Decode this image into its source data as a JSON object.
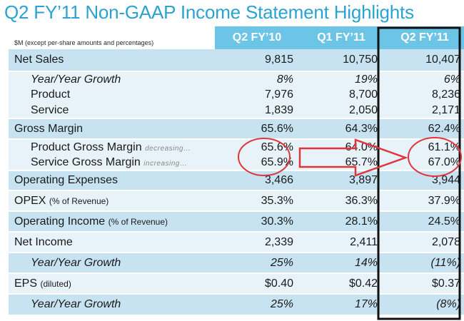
{
  "title": "Q2 FY’11 Non-GAAP Income Statement Highlights",
  "units_note": "$M (except per-share amounts and percentages)",
  "columns": [
    "Q2 FY’10",
    "Q1 FY’11",
    "Q2 FY’11"
  ],
  "rows": {
    "net_sales": {
      "label": "Net Sales",
      "values": [
        "9,815",
        "10,750",
        "10,407"
      ]
    },
    "ns_growth": {
      "label": "Year/Year Growth",
      "values": [
        "8%",
        "19%",
        "6%"
      ]
    },
    "product": {
      "label": "Product",
      "values": [
        "7,976",
        "8,700",
        "8,236"
      ]
    },
    "service": {
      "label": "Service",
      "values": [
        "1,839",
        "2,050",
        "2,171"
      ]
    },
    "gross_margin": {
      "label": "Gross Margin",
      "values": [
        "65.6%",
        "64.3%",
        "62.4%"
      ]
    },
    "product_gm": {
      "label": "Product Gross Margin",
      "hint": "decreasing…",
      "values": [
        "65.6%",
        "64.0%",
        "61.1%"
      ]
    },
    "service_gm": {
      "label": "Service Gross Margin",
      "hint": "increasing…",
      "values": [
        "65.9%",
        "65.7%",
        "67.0%"
      ]
    },
    "opex": {
      "label": "Operating Expenses",
      "values": [
        "3,466",
        "3,897",
        "3,944"
      ]
    },
    "opex_pct": {
      "label": "OPEX",
      "qualifier": "(% of Revenue)",
      "values": [
        "35.3%",
        "36.3%",
        "37.9%"
      ]
    },
    "op_income": {
      "label": "Operating Income",
      "qualifier": "(% of Revenue)",
      "values": [
        "30.3%",
        "28.1%",
        "24.5%"
      ]
    },
    "net_income": {
      "label": "Net Income",
      "values": [
        "2,339",
        "2,411",
        "2,078"
      ]
    },
    "ni_growth": {
      "label": "Year/Year Growth",
      "values": [
        "25%",
        "14%",
        "(11%)"
      ]
    },
    "eps": {
      "label": "EPS",
      "qualifier": "(diluted)",
      "values": [
        "$0.40",
        "$0.42",
        "$0.37"
      ]
    },
    "eps_growth": {
      "label": "Year/Year Growth",
      "values": [
        "25%",
        "17%",
        "(8%)"
      ]
    }
  },
  "colors": {
    "title": "#2aa3d2",
    "header_bg": "#6cc5e6",
    "row_dark": "#c7e3f1",
    "row_light": "#e7f2f9",
    "annotation": "#e0363b",
    "highlight_border": "#111111"
  }
}
